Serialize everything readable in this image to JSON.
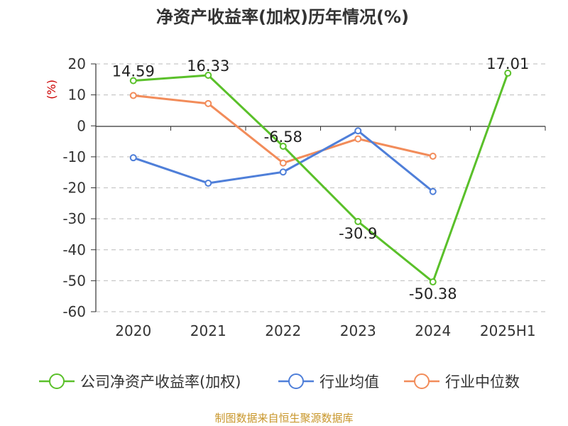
{
  "chart_data": {
    "type": "line",
    "title": "净资产收益率(加权)历年情况(%)",
    "ylabel": "(%)",
    "xlabel": "",
    "categories": [
      "2020",
      "2021",
      "2022",
      "2023",
      "2024",
      "2025H1"
    ],
    "ylim": [
      -60,
      20
    ],
    "yticks": [
      20,
      10,
      0,
      -10,
      -20,
      -30,
      -40,
      -50,
      -60
    ],
    "grid": true,
    "legend_position": "bottom",
    "series": [
      {
        "name": "公司净资产收益率(加权)",
        "color": "#5ac02a",
        "values": [
          14.59,
          16.33,
          -6.58,
          -30.9,
          -50.38,
          17.01
        ],
        "labels": [
          "14.59",
          "16.33",
          "-6.58",
          "-30.9",
          "-50.38",
          "17.01"
        ]
      },
      {
        "name": "行业均值",
        "color": "#4f7fd9",
        "values": [
          -10.3,
          -18.5,
          -14.9,
          -1.6,
          -21.2,
          null
        ]
      },
      {
        "name": "行业中位数",
        "color": "#f28c5a",
        "values": [
          9.8,
          7.2,
          -12.0,
          -4.2,
          -9.8,
          null
        ]
      }
    ],
    "source": "制图数据来自恒生聚源数据库"
  }
}
